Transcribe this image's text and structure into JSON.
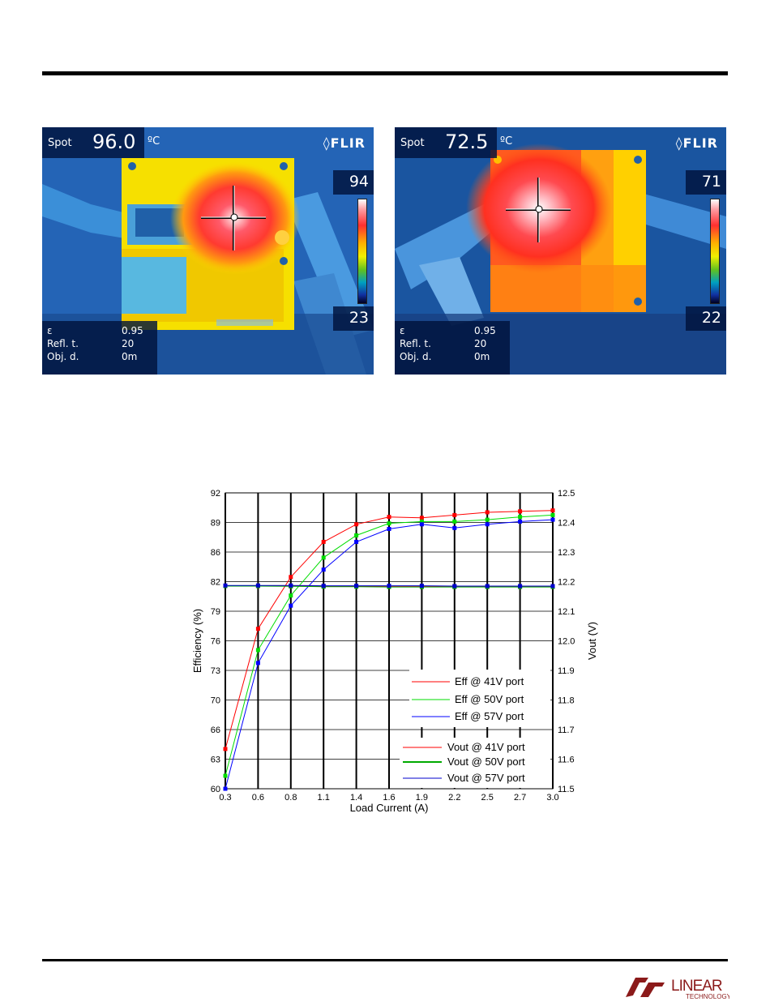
{
  "thermal_images": [
    {
      "spot_label": "Spot",
      "spot_value": "96.0",
      "spot_unit": "ºC",
      "brand": "FLIR",
      "scale_max": "94",
      "scale_min": "23",
      "params": [
        {
          "label": "ε",
          "value": "0.95"
        },
        {
          "label": "Refl. t.",
          "value": "20"
        },
        {
          "label": "Obj. d.",
          "value": "0m"
        }
      ]
    },
    {
      "spot_label": "Spot",
      "spot_value": "72.5",
      "spot_unit": "ºC",
      "brand": "FLIR",
      "scale_max": "71",
      "scale_min": "22",
      "params": [
        {
          "label": "ε",
          "value": "0.95"
        },
        {
          "label": "Refl. t.",
          "value": "20"
        },
        {
          "label": "Obj. d.",
          "value": "0m"
        }
      ]
    }
  ],
  "chart_data": {
    "type": "line",
    "xlabel": "Load Current (A)",
    "ylabel": "Efficiency (%)",
    "y2label": "Vout (V)",
    "x_ticks": [
      "0.3",
      "0.6",
      "0.8",
      "1.1",
      "1.4",
      "1.6",
      "1.9",
      "2.2",
      "2.5",
      "2.7",
      "3.0"
    ],
    "y_ticks": [
      "92",
      "89",
      "86",
      "82",
      "79",
      "76",
      "73",
      "70",
      "66",
      "63",
      "60"
    ],
    "y2_ticks": [
      "12.5",
      "12.4",
      "12.3",
      "12.2",
      "12.1",
      "12.0",
      "11.9",
      "11.8",
      "11.7",
      "11.6",
      "11.5"
    ],
    "grid": true,
    "legend_placement": "bottom-right",
    "series": [
      {
        "name": "Eff @ 41V port",
        "axis": "left",
        "color": "#ff0000",
        "values": [
          64.3,
          77.3,
          82.9,
          86.7,
          88.6,
          89.4,
          89.3,
          89.6,
          89.9,
          90.0,
          90.1
        ]
      },
      {
        "name": "Eff @ 50V port",
        "axis": "left",
        "color": "#00dd00",
        "values": [
          61.4,
          75.0,
          80.9,
          85.0,
          87.4,
          88.7,
          88.9,
          88.9,
          89.1,
          89.4,
          89.6
        ]
      },
      {
        "name": "Eff @ 57V port",
        "axis": "left",
        "color": "#0000ff",
        "values": [
          60.0,
          73.6,
          79.8,
          83.7,
          86.7,
          88.1,
          88.6,
          88.2,
          88.6,
          88.9,
          89.1
        ]
      },
      {
        "name": "Vout @ 41V port",
        "axis": "right",
        "color": "#ff0000",
        "values": [
          12.185,
          12.185,
          12.185,
          12.185,
          12.185,
          12.184,
          12.184,
          12.183,
          12.183,
          12.183,
          12.183
        ]
      },
      {
        "name": "Vout @ 50V port",
        "axis": "right",
        "color": "#00aa00",
        "values": [
          12.185,
          12.185,
          12.184,
          12.183,
          12.183,
          12.182,
          12.182,
          12.182,
          12.182,
          12.182,
          12.182
        ]
      },
      {
        "name": "Vout @ 57V port",
        "axis": "right",
        "color": "#0000cc",
        "values": [
          12.187,
          12.187,
          12.187,
          12.186,
          12.186,
          12.186,
          12.186,
          12.185,
          12.185,
          12.185,
          12.185
        ]
      }
    ]
  },
  "logo": {
    "word": "LINEAR",
    "sub": "TECHNOLOGY"
  }
}
